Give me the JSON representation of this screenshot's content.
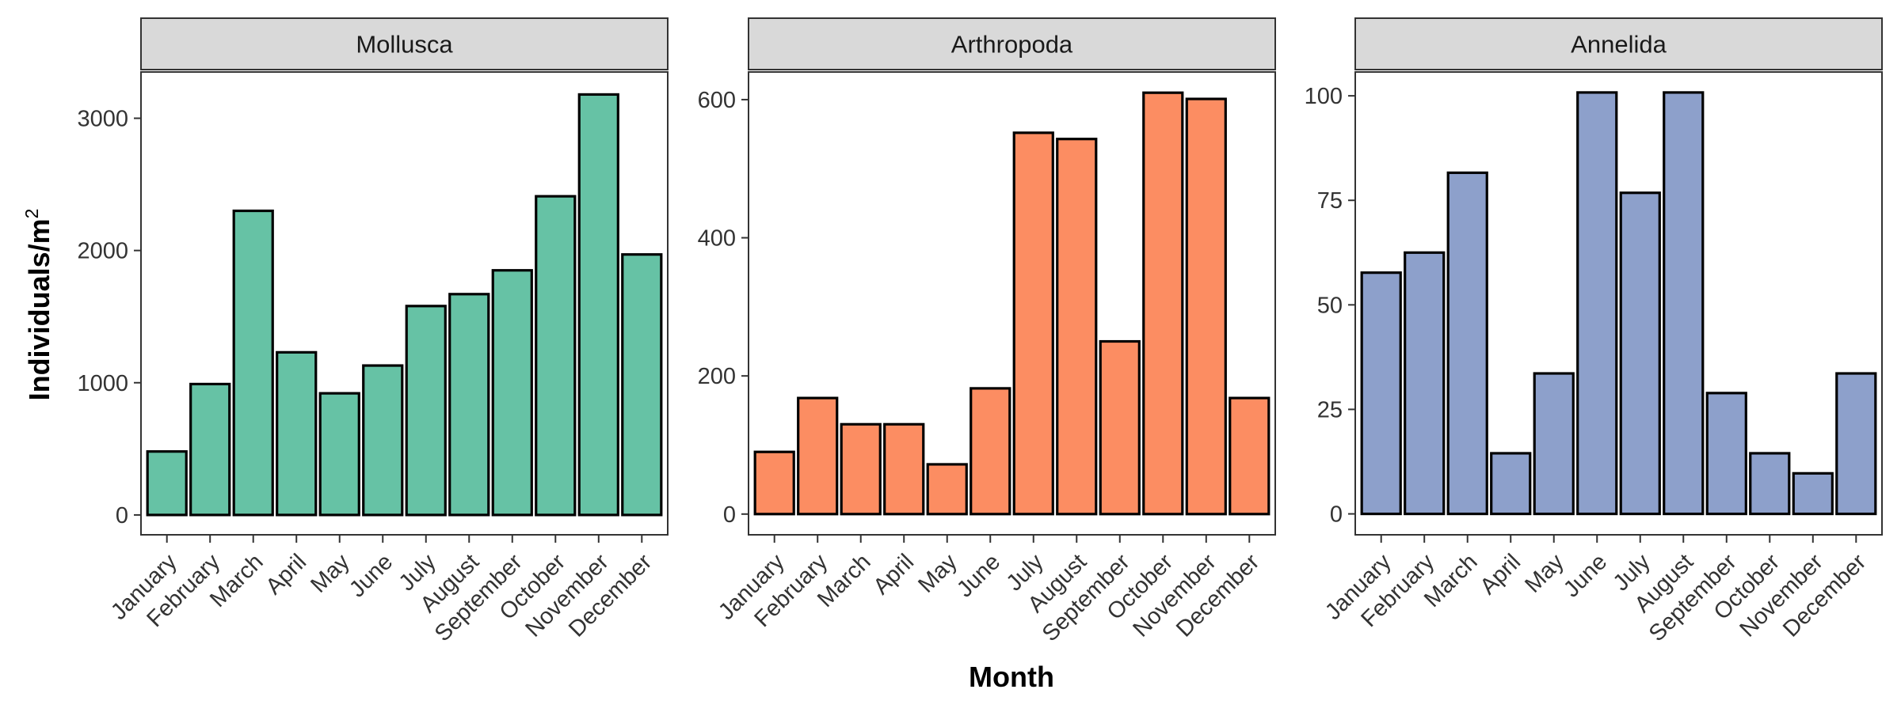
{
  "chart_data": {
    "type": "bar",
    "layout": "faceted",
    "xlabel": "Month",
    "ylabel": "Individuals/m",
    "ylabel_superscript": "2",
    "categories": [
      "January",
      "February",
      "March",
      "April",
      "May",
      "June",
      "July",
      "August",
      "September",
      "October",
      "November",
      "December"
    ],
    "facets": [
      {
        "name": "Mollusca",
        "color": "#66C2A5",
        "values": [
          480,
          990,
          2300,
          1230,
          920,
          1130,
          1580,
          1670,
          1850,
          2410,
          3180,
          1970
        ],
        "ylim": [
          -150,
          3350
        ],
        "yticks": [
          0,
          1000,
          2000,
          3000
        ],
        "ytick_labels": [
          "0",
          "1000",
          "2000",
          "3000"
        ]
      },
      {
        "name": "Arthropoda",
        "color": "#FC8D62",
        "values": [
          90,
          168,
          130,
          130,
          72,
          182,
          552,
          543,
          250,
          610,
          601,
          168
        ],
        "ylim": [
          -30,
          640
        ],
        "yticks": [
          0,
          200,
          400,
          600
        ],
        "ytick_labels": [
          "0",
          "200",
          "400",
          "600"
        ]
      },
      {
        "name": "Annelida",
        "color": "#8DA0CB",
        "values": [
          57.7,
          62.5,
          81.6,
          14.5,
          33.6,
          100.8,
          76.8,
          100.8,
          28.9,
          14.5,
          9.7,
          33.6
        ],
        "ylim": [
          -5,
          105.7
        ],
        "yticks": [
          0,
          25,
          50,
          75,
          100
        ],
        "ytick_labels": [
          "0",
          "25",
          "50",
          "75",
          "100"
        ]
      }
    ]
  }
}
